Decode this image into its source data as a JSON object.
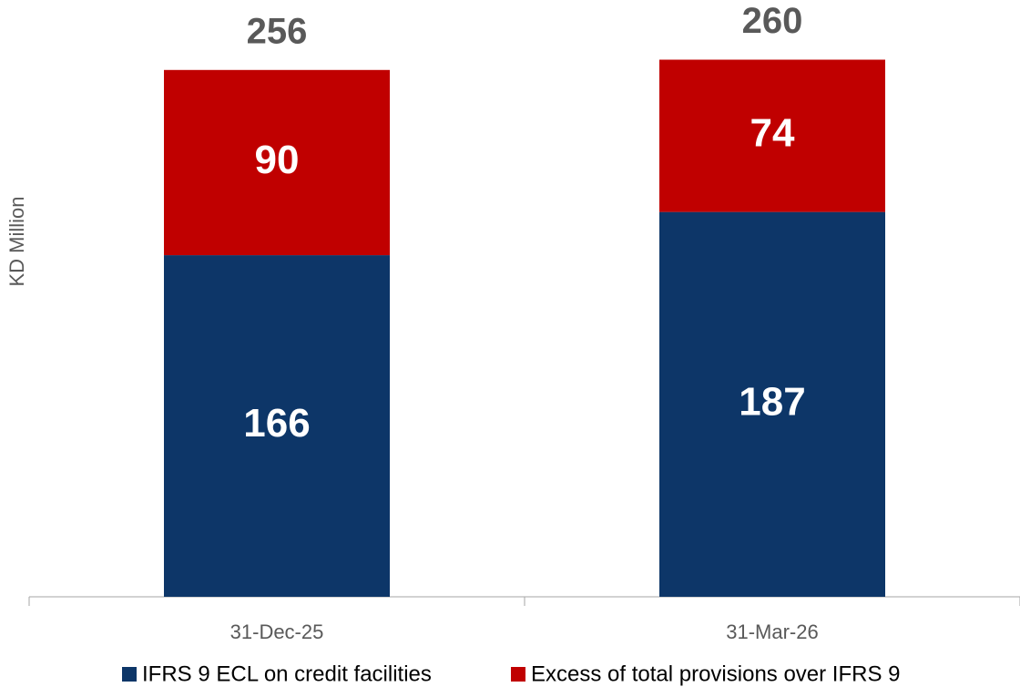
{
  "chart_data": {
    "type": "stacked_bar",
    "y_label": "KD Million",
    "categories": [
      "31-Dec-25",
      "31-Mar-26"
    ],
    "series": [
      {
        "name": "IFRS 9 ECL on credit facilities",
        "color": "#0d3668",
        "values": [
          166,
          187
        ]
      },
      {
        "name": "Excess of total provisions over IFRS 9",
        "color": "#c00000",
        "values": [
          90,
          74
        ]
      }
    ],
    "totals": [
      256,
      260
    ],
    "ylim": [
      0,
      290
    ],
    "legend": "bottom"
  }
}
